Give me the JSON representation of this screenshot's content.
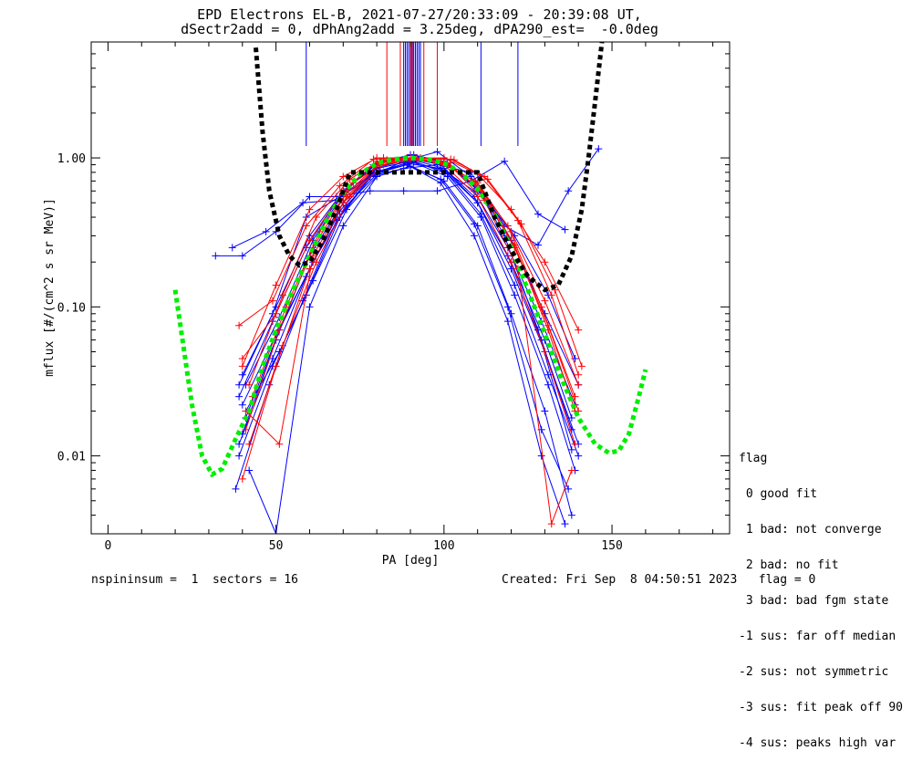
{
  "header": {
    "title_line1": "EPD Electrons EL-B, 2021-07-27/20:33:09 - 20:39:08 UT,",
    "title_line2": "dSectr2add = 0, dPhAng2add = 3.25deg, dPA290_est=  -0.0deg"
  },
  "chart_data": {
    "type": "scatter",
    "xlabel": "PA [deg]",
    "ylabel": "mflux [#/(cm^2 s sr MeV)]",
    "xlim": [
      -5,
      185
    ],
    "ylim": [
      0.003,
      6.0
    ],
    "yscale": "log",
    "x_ticks": [
      0,
      50,
      100,
      150
    ],
    "x_tick_labels": [
      "0",
      "50",
      "100",
      "150"
    ],
    "y_ticks": [
      0.01,
      0.1,
      1.0
    ],
    "y_tick_labels": [
      "0.01",
      "0.10",
      "1.00"
    ],
    "colors": {
      "series_a": "#0000ff",
      "series_b": "#ff0000",
      "fit_model": "#00ee00",
      "loss_cone": "#000000"
    },
    "model_curves": [
      {
        "color": "#00ee00",
        "style": "dashed-thick",
        "x": [
          20,
          25,
          28,
          31,
          34,
          38,
          42,
          46,
          50,
          55,
          60,
          65,
          70,
          75,
          80,
          85,
          90,
          95,
          100,
          105,
          110,
          115,
          120,
          125,
          130,
          135,
          140,
          145,
          149,
          152,
          155,
          158,
          160
        ],
        "y": [
          0.13,
          0.022,
          0.01,
          0.0075,
          0.0082,
          0.013,
          0.02,
          0.04,
          0.07,
          0.13,
          0.22,
          0.38,
          0.58,
          0.78,
          0.92,
          0.98,
          1.0,
          0.98,
          0.92,
          0.8,
          0.62,
          0.42,
          0.25,
          0.13,
          0.066,
          0.033,
          0.018,
          0.012,
          0.0105,
          0.0108,
          0.014,
          0.025,
          0.038
        ]
      },
      {
        "color": "#000000",
        "style": "dashed-thick",
        "x": [
          44,
          46,
          48,
          51,
          54,
          57,
          60,
          64,
          68,
          72,
          110,
          115,
          120,
          125,
          130,
          134,
          138,
          141,
          143,
          145,
          147
        ],
        "y": [
          5.5,
          1.5,
          0.6,
          0.3,
          0.22,
          0.19,
          0.2,
          0.28,
          0.45,
          0.8,
          0.8,
          0.4,
          0.24,
          0.16,
          0.13,
          0.14,
          0.22,
          0.45,
          1.0,
          2.4,
          6.0
        ]
      }
    ],
    "series": [
      {
        "color": "#0000ff",
        "x": [
          32,
          40,
          50,
          60,
          68,
          78,
          88,
          98,
          108,
          118,
          128,
          136
        ],
        "y": [
          0.22,
          0.22,
          0.32,
          0.55,
          0.55,
          0.6,
          0.6,
          0.6,
          0.7,
          0.95,
          0.42,
          0.33
        ]
      },
      {
        "color": "#0000ff",
        "x": [
          37,
          47,
          58,
          68,
          78,
          88,
          98,
          108,
          118,
          128,
          137,
          146
        ],
        "y": [
          0.25,
          0.32,
          0.5,
          0.52,
          0.75,
          0.85,
          0.9,
          0.8,
          0.35,
          0.26,
          0.6,
          1.15
        ]
      },
      {
        "color": "#0000ff",
        "x": [
          39,
          49,
          59,
          69,
          79,
          89,
          99,
          109,
          119,
          129,
          139
        ],
        "y": [
          0.03,
          0.09,
          0.4,
          0.55,
          0.8,
          0.92,
          0.85,
          0.6,
          0.25,
          0.08,
          0.022
        ]
      },
      {
        "color": "#0000ff",
        "x": [
          40,
          50,
          60,
          70,
          80,
          90,
          100,
          110,
          120,
          130,
          140
        ],
        "y": [
          0.014,
          0.06,
          0.22,
          0.5,
          0.85,
          0.95,
          0.82,
          0.5,
          0.18,
          0.05,
          0.012
        ]
      },
      {
        "color": "#0000ff",
        "x": [
          41,
          51,
          61,
          71,
          81,
          91,
          101,
          111,
          121,
          131,
          139
        ],
        "y": [
          0.02,
          0.05,
          0.15,
          0.45,
          0.8,
          0.93,
          0.75,
          0.4,
          0.12,
          0.03,
          0.008
        ]
      },
      {
        "color": "#0000ff",
        "x": [
          39,
          49,
          59,
          69,
          79,
          89,
          99,
          109,
          119,
          129,
          138
        ],
        "y": [
          0.025,
          0.08,
          0.25,
          0.55,
          0.9,
          1.0,
          0.9,
          0.55,
          0.22,
          0.06,
          0.015
        ]
      },
      {
        "color": "#0000ff",
        "x": [
          42,
          50,
          60,
          70,
          80,
          90,
          100,
          110,
          120,
          130,
          138
        ],
        "y": [
          0.008,
          0.003,
          0.1,
          0.35,
          0.75,
          0.88,
          0.7,
          0.35,
          0.09,
          0.02,
          0.004
        ]
      },
      {
        "color": "#0000ff",
        "x": [
          40,
          50,
          60,
          70,
          80,
          90,
          100,
          110,
          120,
          130,
          140
        ],
        "y": [
          0.035,
          0.1,
          0.3,
          0.6,
          0.92,
          1.05,
          0.95,
          0.62,
          0.28,
          0.09,
          0.03
        ]
      },
      {
        "color": "#0000ff",
        "x": [
          41,
          51,
          61,
          71,
          81,
          91,
          101,
          111,
          121,
          131,
          140
        ],
        "y": [
          0.018,
          0.07,
          0.2,
          0.48,
          0.82,
          0.95,
          0.78,
          0.42,
          0.14,
          0.035,
          0.01
        ]
      },
      {
        "color": "#0000ff",
        "x": [
          39,
          49,
          59,
          69,
          79,
          89,
          99,
          109,
          119,
          129,
          137
        ],
        "y": [
          0.01,
          0.04,
          0.12,
          0.4,
          0.78,
          0.9,
          0.72,
          0.36,
          0.1,
          0.015,
          0.006
        ]
      },
      {
        "color": "#0000ff",
        "x": [
          40,
          50,
          60,
          70,
          80,
          90,
          100,
          110,
          120,
          130,
          138
        ],
        "y": [
          0.022,
          0.065,
          0.18,
          0.5,
          0.86,
          0.98,
          0.85,
          0.5,
          0.2,
          0.06,
          0.018
        ]
      },
      {
        "color": "#0000ff",
        "x": [
          38,
          48,
          58,
          68,
          78,
          88,
          98,
          108,
          118,
          128,
          138
        ],
        "y": [
          0.006,
          0.03,
          0.11,
          0.38,
          0.75,
          0.95,
          1.1,
          0.75,
          0.3,
          0.07,
          0.011
        ]
      },
      {
        "color": "#0000ff",
        "x": [
          41,
          51,
          61,
          71,
          81,
          91,
          101,
          111,
          121,
          131,
          139
        ],
        "y": [
          0.03,
          0.085,
          0.28,
          0.62,
          0.95,
          1.05,
          0.92,
          0.58,
          0.3,
          0.12,
          0.045
        ]
      },
      {
        "color": "#0000ff",
        "x": [
          39,
          49,
          59,
          69,
          79,
          89,
          99,
          109,
          119,
          129,
          136
        ],
        "y": [
          0.012,
          0.045,
          0.16,
          0.44,
          0.8,
          0.9,
          0.68,
          0.3,
          0.08,
          0.01,
          0.0035
        ]
      },
      {
        "color": "#ff0000",
        "x": [
          39,
          49,
          59,
          69,
          79,
          89,
          99,
          109,
          119,
          129,
          139
        ],
        "y": [
          0.075,
          0.11,
          0.35,
          0.65,
          0.98,
          1.0,
          0.95,
          0.7,
          0.35,
          0.1,
          0.025
        ]
      },
      {
        "color": "#ff0000",
        "x": [
          40,
          50,
          60,
          70,
          80,
          90,
          100,
          110,
          120,
          130,
          140
        ],
        "y": [
          0.045,
          0.09,
          0.28,
          0.6,
          0.95,
          0.98,
          0.92,
          0.68,
          0.32,
          0.11,
          0.03
        ]
      },
      {
        "color": "#ff0000",
        "x": [
          41,
          51,
          61,
          71,
          81,
          91,
          101,
          111,
          121,
          131,
          139
        ],
        "y": [
          0.02,
          0.012,
          0.22,
          0.55,
          0.92,
          1.0,
          0.9,
          0.62,
          0.26,
          0.07,
          0.02
        ]
      },
      {
        "color": "#ff0000",
        "x": [
          42,
          52,
          62,
          72,
          82,
          92,
          102,
          112,
          122,
          132,
          140
        ],
        "y": [
          0.03,
          0.12,
          0.4,
          0.72,
          1.0,
          1.0,
          0.98,
          0.75,
          0.38,
          0.12,
          0.035
        ]
      },
      {
        "color": "#ff0000",
        "x": [
          40,
          50,
          60,
          70,
          80,
          90,
          100,
          110,
          120,
          130,
          139
        ],
        "y": [
          0.007,
          0.04,
          0.18,
          0.5,
          0.88,
          1.0,
          0.9,
          0.55,
          0.2,
          0.05,
          0.012
        ]
      },
      {
        "color": "#ff0000",
        "x": [
          43,
          53,
          63,
          73,
          83,
          93,
          103,
          113,
          123,
          133,
          141
        ],
        "y": [
          0.025,
          0.1,
          0.32,
          0.68,
          0.97,
          1.0,
          0.97,
          0.72,
          0.36,
          0.13,
          0.04
        ]
      },
      {
        "color": "#ff0000",
        "x": [
          41,
          51,
          61,
          71,
          81,
          91,
          101,
          111,
          121,
          131,
          140
        ],
        "y": [
          0.015,
          0.07,
          0.25,
          0.58,
          0.93,
          1.0,
          0.93,
          0.6,
          0.25,
          0.075,
          0.02
        ]
      },
      {
        "color": "#ff0000",
        "x": [
          42,
          52,
          62,
          72,
          82,
          92,
          102,
          112,
          122,
          132,
          138
        ],
        "y": [
          0.012,
          0.055,
          0.2,
          0.55,
          0.9,
          0.98,
          0.88,
          0.52,
          0.18,
          0.0035,
          0.008
        ]
      },
      {
        "color": "#ff0000",
        "x": [
          40,
          50,
          60,
          70,
          80,
          90,
          100,
          110,
          120,
          130,
          140
        ],
        "y": [
          0.04,
          0.14,
          0.45,
          0.75,
          1.0,
          1.0,
          1.0,
          0.78,
          0.45,
          0.2,
          0.07
        ]
      }
    ],
    "vertical_lines": [
      {
        "color": "#0000ff",
        "x": [
          59,
          88,
          88.5,
          89,
          89.5,
          90,
          90.5,
          91,
          91.5,
          92,
          92.5,
          93,
          111,
          122
        ]
      },
      {
        "color": "#ff0000",
        "x": [
          83,
          87,
          90.2,
          90.8,
          94,
          98
        ]
      }
    ]
  },
  "legend": {
    "title": "flag",
    "items": [
      " 0 good fit",
      " 1 bad: not converge",
      " 2 bad: no fit",
      " 3 bad: bad fgm state",
      "-1 sus: far off median",
      "-2 sus: not symmetric",
      "-3 sus: fit peak off 90",
      "-4 sus: peaks high var"
    ]
  },
  "footer": {
    "left": "nspininsum =  1  sectors = 16",
    "right": "Created: Fri Sep  8 04:50:51 2023   flag = 0"
  }
}
